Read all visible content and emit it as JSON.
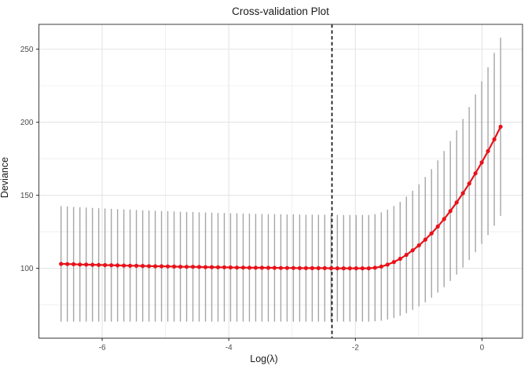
{
  "chart_data": {
    "type": "scatter",
    "title": "Cross-validation Plot",
    "xlabel": "Log(λ)",
    "ylabel": "Deviance",
    "xlim": [
      -7.0,
      0.64
    ],
    "ylim": [
      52.2,
      267.0
    ],
    "x_major_ticks": [
      -6,
      -4,
      -2,
      0
    ],
    "x_tick_labels": [
      "-6",
      "-4",
      "-2",
      "0"
    ],
    "x_minor_gridlines": [
      -5,
      -3,
      -1
    ],
    "y_major_ticks": [
      100,
      150,
      200,
      250
    ],
    "y_tick_labels": [
      "100",
      "150",
      "200",
      "250"
    ],
    "y_minor_gridlines": [
      75,
      125,
      175,
      225
    ],
    "grid": true,
    "legend": false,
    "vline": {
      "x": -2.37,
      "style": "dashed",
      "color": "#111111"
    },
    "colors": {
      "point": "#e8121a",
      "line": "#e8121a",
      "errorbar": "#a6a6a6",
      "grid_major": "#e5e5e5",
      "grid_minor": "#e5e5e5",
      "panel_border": "#4d4d4d",
      "tick_mark": "#333333",
      "tick_label": "#4d4d4d",
      "background": "#ffffff"
    },
    "series": [
      {
        "name": "cv-deviance",
        "x": [
          -6.65,
          -6.551,
          -6.452,
          -6.352,
          -6.253,
          -6.154,
          -6.055,
          -5.956,
          -5.856,
          -5.757,
          -5.658,
          -5.559,
          -5.46,
          -5.36,
          -5.261,
          -5.162,
          -5.063,
          -4.964,
          -4.864,
          -4.765,
          -4.666,
          -4.567,
          -4.468,
          -4.368,
          -4.269,
          -4.17,
          -4.071,
          -3.972,
          -3.872,
          -3.773,
          -3.674,
          -3.575,
          -3.476,
          -3.376,
          -3.277,
          -3.178,
          -3.079,
          -2.98,
          -2.88,
          -2.781,
          -2.682,
          -2.583,
          -2.484,
          -2.384,
          -2.285,
          -2.186,
          -2.087,
          -1.988,
          -1.888,
          -1.789,
          -1.69,
          -1.591,
          -1.492,
          -1.392,
          -1.293,
          -1.194,
          -1.095,
          -0.996,
          -0.896,
          -0.797,
          -0.698,
          -0.599,
          -0.5,
          -0.4,
          -0.301,
          -0.202,
          -0.103,
          -0.004,
          0.095,
          0.194,
          0.294
        ],
        "y": [
          103.0,
          102.9,
          102.8,
          102.6,
          102.5,
          102.4,
          102.3,
          102.2,
          102.1,
          102.0,
          101.9,
          101.8,
          101.7,
          101.6,
          101.5,
          101.4,
          101.4,
          101.3,
          101.2,
          101.1,
          101.0,
          101.0,
          100.9,
          100.8,
          100.8,
          100.7,
          100.7,
          100.6,
          100.5,
          100.5,
          100.4,
          100.4,
          100.4,
          100.3,
          100.3,
          100.2,
          100.2,
          100.2,
          100.1,
          100.1,
          100.1,
          100.1,
          100.1,
          100.0,
          100.0,
          100.0,
          100.0,
          100.0,
          100.0,
          100.0,
          100.4,
          101.2,
          102.5,
          104.3,
          106.5,
          109.2,
          112.3,
          115.7,
          119.6,
          123.9,
          128.6,
          133.7,
          139.2,
          145.1,
          151.4,
          158.0,
          165.0,
          172.4,
          180.2,
          188.3,
          196.9
        ],
        "lo": [
          63.5,
          63.5,
          63.5,
          63.5,
          63.5,
          63.5,
          63.5,
          63.5,
          63.5,
          63.5,
          63.5,
          63.5,
          63.5,
          63.5,
          63.5,
          63.5,
          63.5,
          63.5,
          63.5,
          63.5,
          63.5,
          63.5,
          63.5,
          63.5,
          63.5,
          63.5,
          63.5,
          63.5,
          63.5,
          63.5,
          63.5,
          63.5,
          63.5,
          63.5,
          63.5,
          63.5,
          63.5,
          63.5,
          63.5,
          63.5,
          63.5,
          63.5,
          63.5,
          63.5,
          63.5,
          63.5,
          63.5,
          63.5,
          63.5,
          63.5,
          63.7,
          64.1,
          64.9,
          66.0,
          67.5,
          69.3,
          71.5,
          73.9,
          76.7,
          79.9,
          83.3,
          87.1,
          91.3,
          95.7,
          100.5,
          105.6,
          111.0,
          116.7,
          122.8,
          129.1,
          135.9
        ],
        "hi": [
          142.5,
          142.3,
          142.0,
          141.8,
          141.6,
          141.3,
          141.1,
          140.9,
          140.7,
          140.5,
          140.3,
          140.1,
          139.9,
          139.7,
          139.6,
          139.4,
          139.2,
          139.1,
          138.9,
          138.7,
          138.6,
          138.5,
          138.3,
          138.2,
          138.1,
          137.9,
          137.8,
          137.7,
          137.6,
          137.5,
          137.4,
          137.3,
          137.2,
          137.1,
          137.1,
          137.0,
          136.9,
          136.9,
          136.8,
          136.7,
          136.7,
          136.7,
          136.6,
          136.6,
          136.6,
          136.5,
          136.5,
          136.5,
          136.5,
          136.5,
          137.1,
          138.3,
          140.1,
          142.6,
          145.5,
          149.1,
          153.1,
          157.5,
          162.5,
          167.9,
          173.9,
          180.3,
          187.1,
          194.5,
          202.3,
          210.4,
          219.0,
          228.1,
          237.6,
          247.5,
          257.9
        ]
      }
    ]
  }
}
